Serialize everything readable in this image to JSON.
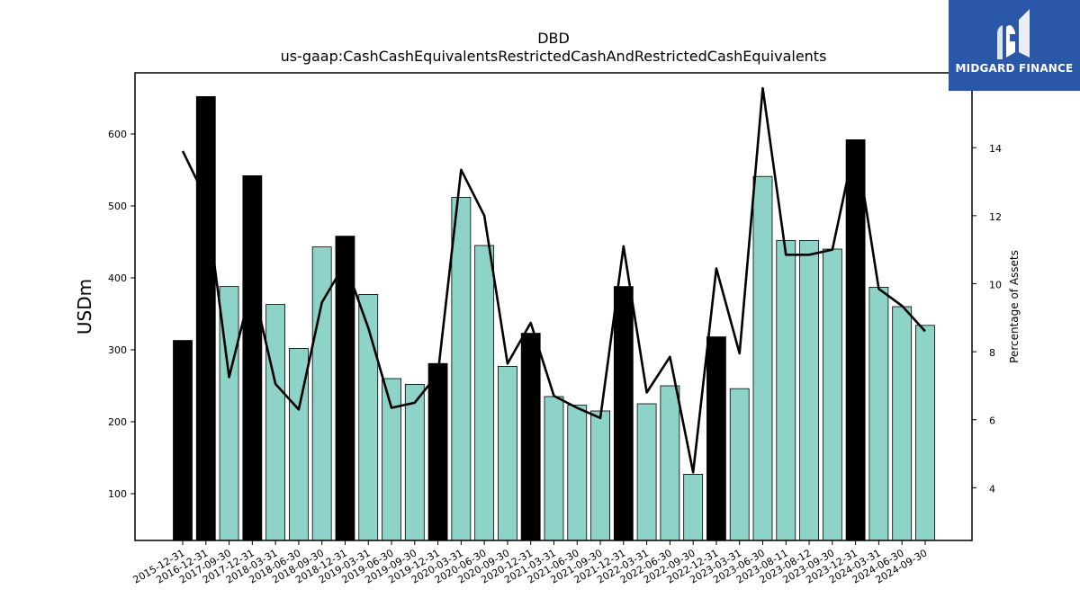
{
  "chart_data": {
    "type": "bar",
    "title": "DBD",
    "subtitle": "us-gaap:CashCashEquivalentsRestrictedCashAndRestrictedCashEquivalents",
    "ylabel": "USDm",
    "y2label": "Percentage of Assets",
    "ylim": [
      35,
      685
    ],
    "y2lim": [
      2.45,
      16.2
    ],
    "yticks": [
      100,
      200,
      300,
      400,
      500,
      600
    ],
    "y2ticks": [
      4,
      6,
      8,
      10,
      12,
      14
    ],
    "categories": [
      "2015-12-31",
      "2016-12-31",
      "2017-09-30",
      "2017-12-31",
      "2018-03-31",
      "2018-06-30",
      "2018-09-30",
      "2018-12-31",
      "2019-03-31",
      "2019-06-30",
      "2019-09-30",
      "2019-12-31",
      "2020-03-31",
      "2020-06-30",
      "2020-09-30",
      "2020-12-31",
      "2021-03-31",
      "2021-06-30",
      "2021-09-30",
      "2021-12-31",
      "2022-03-31",
      "2022-06-30",
      "2022-09-30",
      "2022-12-31",
      "2023-03-31",
      "2023-06-30",
      "2023-08-11",
      "2023-08-12",
      "2023-09-30",
      "2023-12-31",
      "2024-03-31",
      "2024-06-30",
      "2024-09-30"
    ],
    "series": [
      {
        "kind": "bar",
        "values": [
          313,
          652,
          388,
          542,
          363,
          302,
          443,
          458,
          377,
          260,
          252,
          281,
          512,
          445,
          277,
          323,
          235,
          223,
          215,
          388,
          225,
          250,
          127,
          318,
          246,
          541,
          452,
          452,
          440,
          592,
          387,
          360,
          334
        ],
        "highlight": [
          true,
          true,
          false,
          true,
          false,
          false,
          false,
          true,
          false,
          false,
          false,
          true,
          false,
          false,
          false,
          true,
          false,
          false,
          false,
          true,
          false,
          false,
          false,
          true,
          false,
          false,
          false,
          false,
          false,
          true,
          false,
          false,
          false
        ]
      },
      {
        "kind": "line",
        "axis": "right",
        "values": [
          13.9,
          12.5,
          7.25,
          10.0,
          7.05,
          6.3,
          9.45,
          10.6,
          8.7,
          6.35,
          6.5,
          7.35,
          13.35,
          12.0,
          7.65,
          8.85,
          6.7,
          6.35,
          6.05,
          11.1,
          6.8,
          7.85,
          4.45,
          10.45,
          7.95,
          15.75,
          10.85,
          10.85,
          11.0,
          14.2,
          9.85,
          9.35,
          8.6
        ]
      }
    ],
    "colors": {
      "bar": "#8dd3c7",
      "bar_highlight": "#000000",
      "line": "#000000"
    }
  },
  "logo": {
    "text": "MIDGARD FINANCE",
    "background": "#2b57a8"
  }
}
